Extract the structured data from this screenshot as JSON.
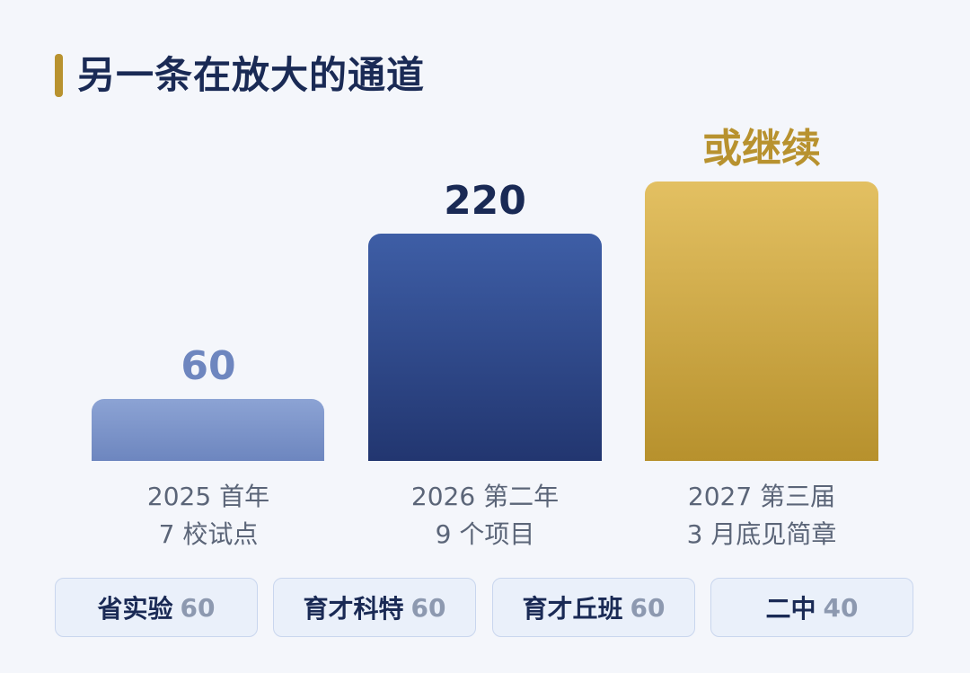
{
  "title": "另一条在放大的通道",
  "chart_data": {
    "type": "bar",
    "categories": [
      "2025 首年",
      "2026 第二年",
      "2027 第三届"
    ],
    "sublabels": [
      "7 校试点",
      "9 个项目",
      "3 月底见简章"
    ],
    "values": [
      60,
      220,
      null
    ],
    "value_labels": [
      "60",
      "220",
      "或继续"
    ],
    "colors": [
      "#7a91c8",
      "#2f4a8c",
      "#cfaa48"
    ]
  },
  "chips": [
    {
      "name": "省实验",
      "value": "60"
    },
    {
      "name": "育才科特",
      "value": "60"
    },
    {
      "name": "育才丘班",
      "value": "60"
    },
    {
      "name": "二中",
      "value": "40"
    }
  ]
}
